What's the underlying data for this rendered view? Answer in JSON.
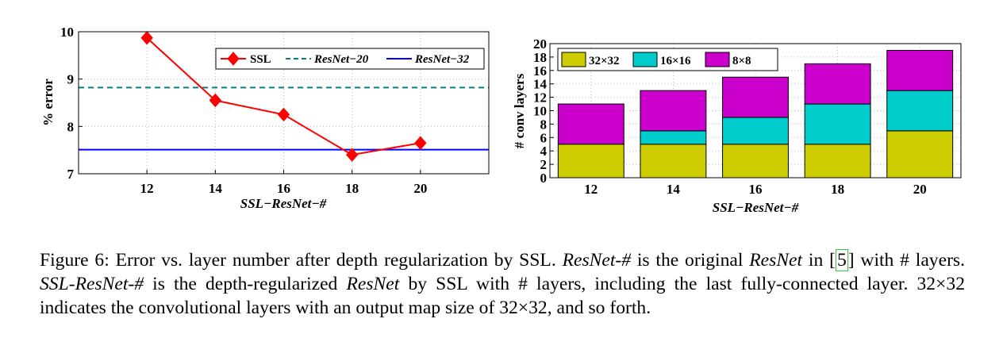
{
  "chart_data": [
    {
      "type": "line",
      "x": [
        12,
        14,
        16,
        18,
        20
      ],
      "xlabel": "SSL−ResNet−#",
      "ylabel": "% error",
      "xlim": [
        10,
        22
      ],
      "ylim": [
        7,
        10
      ],
      "yticks": [
        "7",
        "8",
        "9",
        "10"
      ],
      "grid": true,
      "legend": "top-right",
      "series": [
        {
          "name": "SSL",
          "values": [
            9.87,
            8.55,
            8.25,
            7.4,
            7.65
          ],
          "color": "#ff0000",
          "marker": "diamond"
        },
        {
          "name": "ResNet−20",
          "constant": 8.82,
          "color": "#008080",
          "style": "dashed"
        },
        {
          "name": "ResNet−32",
          "constant": 7.51,
          "color": "#0000ff",
          "style": "solid"
        }
      ]
    },
    {
      "type": "bar",
      "stacked": true,
      "categories": [
        "12",
        "14",
        "16",
        "18",
        "20"
      ],
      "xlabel": "SSL−ResNet−#",
      "ylabel": "# conv layers",
      "ylim": [
        0,
        20
      ],
      "yticks": [
        "0",
        "2",
        "4",
        "6",
        "8",
        "10",
        "12",
        "14",
        "16",
        "18",
        "20"
      ],
      "grid": true,
      "legend": "top",
      "series": [
        {
          "name": "32×32",
          "values": [
            5,
            5,
            5,
            5,
            7
          ],
          "color": "#cccc00"
        },
        {
          "name": "16×16",
          "values": [
            0,
            2,
            4,
            6,
            6
          ],
          "color": "#00cccc"
        },
        {
          "name": "8×8",
          "values": [
            6,
            6,
            6,
            6,
            6
          ],
          "color": "#cc00cc"
        }
      ]
    }
  ],
  "caption": {
    "p1": "Figure 6: Error vs. layer number after depth regularization by SSL. ",
    "p2": "ResNet-#",
    "p3": " is the original ",
    "p4": "ResNet",
    "p5": " in [",
    "ref": "5",
    "p6": "] with # layers. ",
    "p7": "SSL-ResNet-#",
    "p8": " is the depth-regularized ",
    "p9": "ResNet",
    "p10": " by SSL with # layers, including the last fully-connected layer. 32×32 indicates the convolutional layers with an output map size of 32×32, and so forth."
  }
}
